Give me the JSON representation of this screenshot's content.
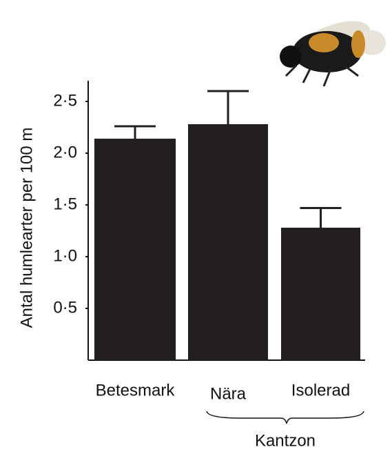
{
  "chart_data": {
    "type": "bar",
    "y_label": "Antal humlearter per 100 m",
    "categories": [
      "Betesmark",
      "Nära",
      "Isolerad"
    ],
    "values": [
      2.14,
      2.28,
      1.28
    ],
    "errors": [
      0.12,
      0.32,
      0.19
    ],
    "color": "#231f20",
    "group_label": "Kantzon",
    "ylim": [
      0,
      2.7
    ],
    "yticks": [
      {
        "value": 0.5,
        "label": "0·5"
      },
      {
        "value": 1.0,
        "label": "1·0"
      },
      {
        "value": 1.5,
        "label": "1·5"
      },
      {
        "value": 2.0,
        "label": "2·0"
      },
      {
        "value": 2.5,
        "label": "2·5"
      }
    ]
  }
}
